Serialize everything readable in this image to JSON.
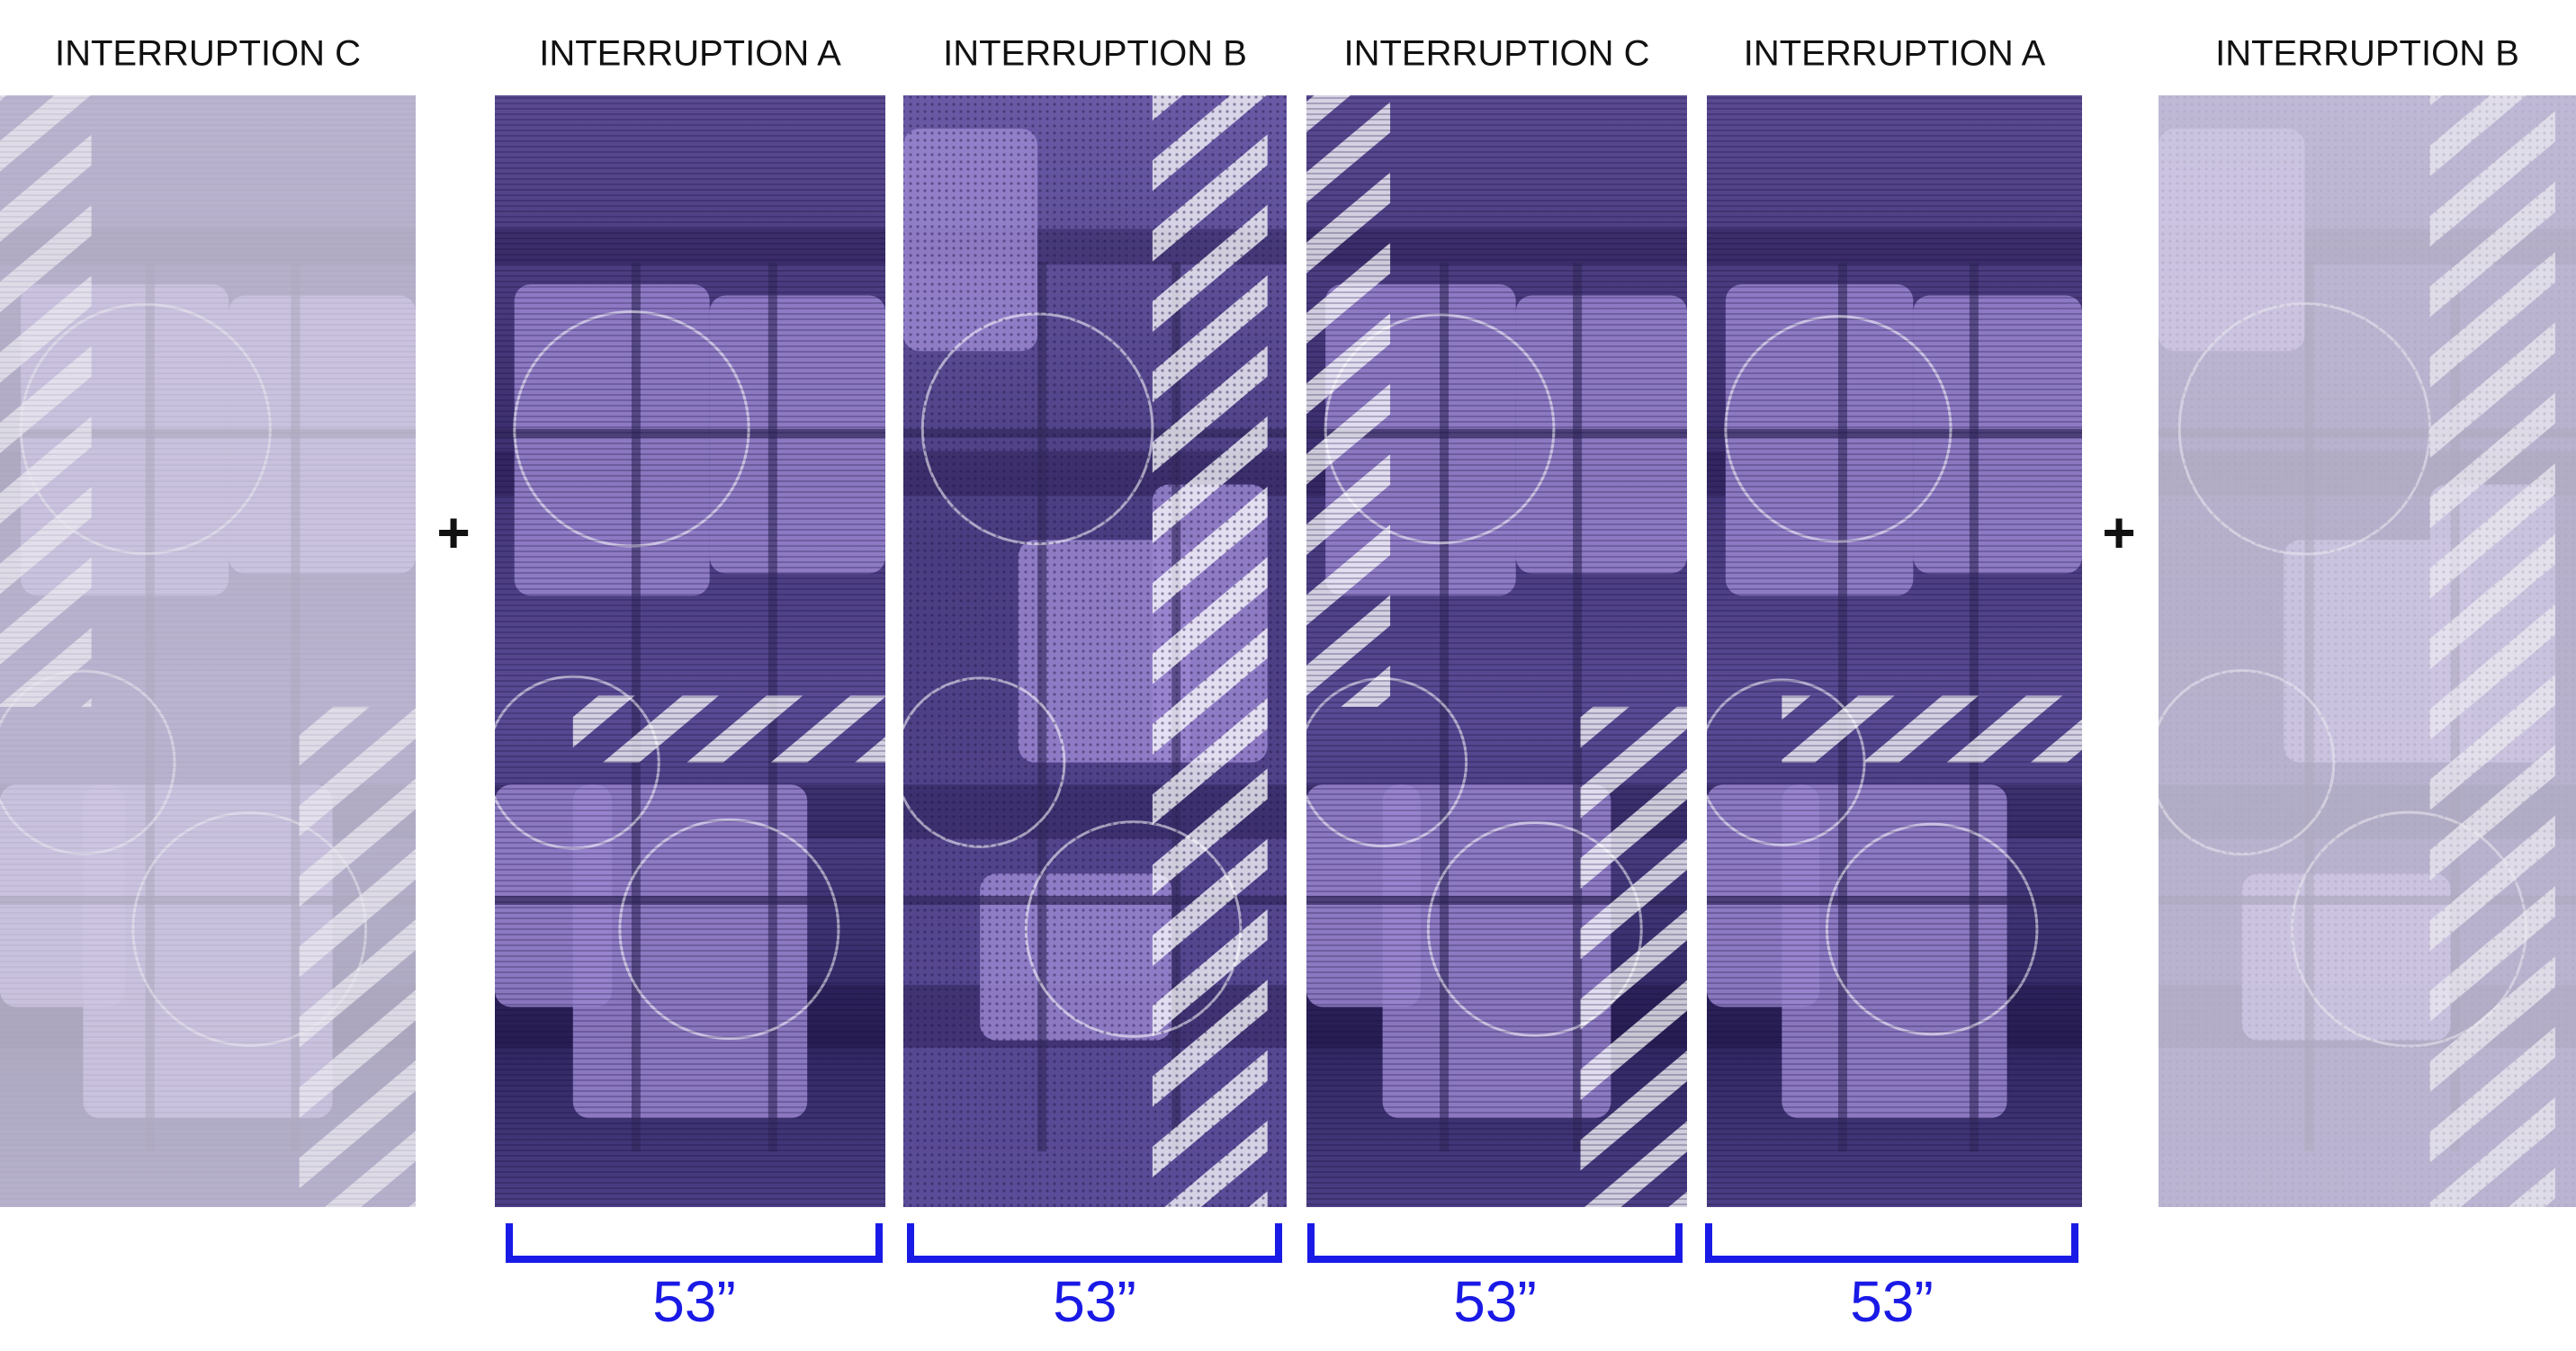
{
  "panels": [
    {
      "label": "INTERRUPTION C"
    },
    {
      "label": "INTERRUPTION A"
    },
    {
      "label": "INTERRUPTION B"
    },
    {
      "label": "INTERRUPTION C"
    },
    {
      "label": "INTERRUPTION A"
    },
    {
      "label": "INTERRUPTION B"
    }
  ],
  "separators": [
    "+",
    "+"
  ],
  "widths": [
    "53”",
    "53”",
    "53”",
    "53”"
  ]
}
